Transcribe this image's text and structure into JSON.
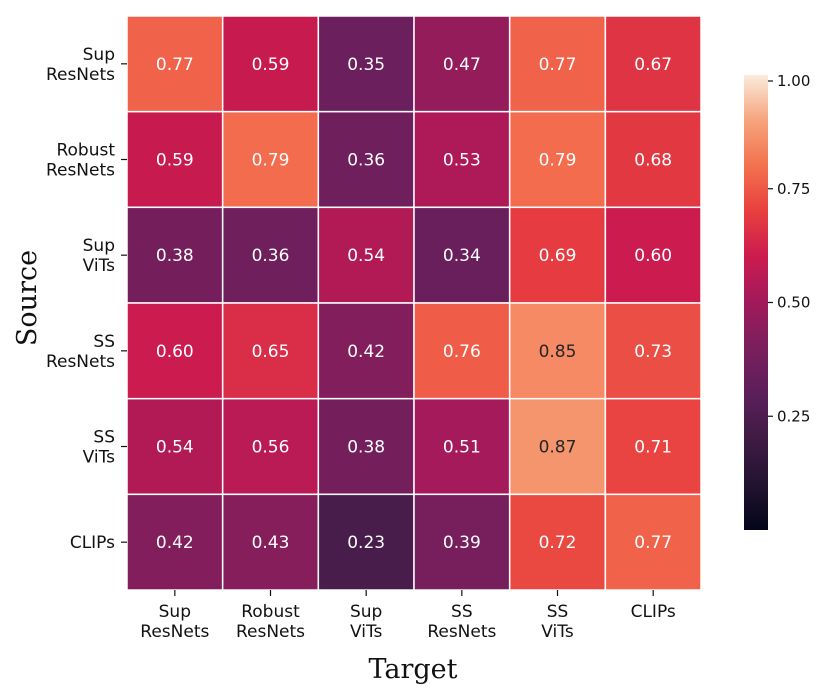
{
  "chart_data": {
    "type": "heatmap",
    "title": "",
    "xlabel": "Target",
    "ylabel": "Source",
    "x_categories": [
      [
        "Sup",
        "ResNets"
      ],
      [
        "Robust",
        "ResNets"
      ],
      [
        "Sup",
        "ViTs"
      ],
      [
        "SS",
        "ResNets"
      ],
      [
        "SS",
        "ViTs"
      ],
      [
        "CLIPs"
      ]
    ],
    "y_categories": [
      [
        "Sup",
        "ResNets"
      ],
      [
        "Robust",
        "ResNets"
      ],
      [
        "Sup",
        "ViTs"
      ],
      [
        "SS",
        "ResNets"
      ],
      [
        "SS",
        "ViTs"
      ],
      [
        "CLIPs"
      ]
    ],
    "values": [
      [
        0.77,
        0.59,
        0.35,
        0.47,
        0.77,
        0.67
      ],
      [
        0.59,
        0.79,
        0.36,
        0.53,
        0.79,
        0.68
      ],
      [
        0.38,
        0.36,
        0.54,
        0.34,
        0.69,
        0.6
      ],
      [
        0.6,
        0.65,
        0.42,
        0.76,
        0.85,
        0.73
      ],
      [
        0.54,
        0.56,
        0.38,
        0.51,
        0.87,
        0.71
      ],
      [
        0.42,
        0.43,
        0.23,
        0.39,
        0.72,
        0.77
      ]
    ],
    "value_labels": [
      [
        "0.77",
        "0.59",
        "0.35",
        "0.47",
        "0.77",
        "0.67"
      ],
      [
        "0.59",
        "0.79",
        "0.36",
        "0.53",
        "0.79",
        "0.68"
      ],
      [
        "0.38",
        "0.36",
        "0.54",
        "0.34",
        "0.69",
        "0.60"
      ],
      [
        "0.60",
        "0.65",
        "0.42",
        "0.76",
        "0.85",
        "0.73"
      ],
      [
        "0.54",
        "0.56",
        "0.38",
        "0.51",
        "0.87",
        "0.71"
      ],
      [
        "0.42",
        "0.43",
        "0.23",
        "0.39",
        "0.72",
        "0.77"
      ]
    ],
    "colorbar": {
      "colormap": "rocket",
      "vmin": 0.0,
      "vmax": 1.0,
      "ticks": [
        0.25,
        0.5,
        0.75,
        1.0
      ],
      "tick_labels": [
        "0.25",
        "0.50",
        "0.75",
        "1.00"
      ]
    }
  }
}
